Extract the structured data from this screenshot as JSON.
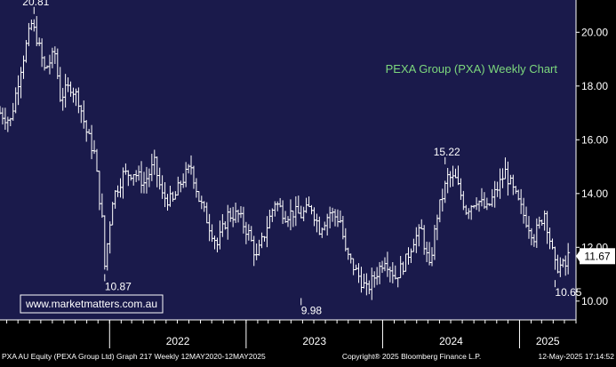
{
  "chart_data": {
    "type": "ohlc",
    "title": "PEXA Group (PXA) Weekly Chart",
    "ylim": [
      9.3,
      21.2
    ],
    "xlim": [
      "2021-03-14",
      "2025-06-01"
    ],
    "y_ticks": [
      "20.00",
      "18.00",
      "16.00",
      "14.00",
      "12.00",
      "10.00"
    ],
    "x_ticks": [
      {
        "label": "2022",
        "start": "2022-01-01",
        "end": "2023-01-01"
      },
      {
        "label": "2023",
        "start": "2023-01-01",
        "end": "2024-01-01"
      },
      {
        "label": "2024",
        "start": "2024-01-01",
        "end": "2025-01-01"
      },
      {
        "label": "2025",
        "start": "2025-01-01",
        "end": "2025-06-01"
      }
    ],
    "last_price": "11.67",
    "annotations": [
      {
        "label": "20.81",
        "x": "2021-06-13",
        "y": 20.81
      },
      {
        "label": "10.87",
        "x": "2021-12-19",
        "y": 10.87
      },
      {
        "label": "9.98",
        "x": "2023-05-28",
        "y": 9.98
      },
      {
        "label": "15.22",
        "x": "2024-06-16",
        "y": 15.22
      },
      {
        "label": "10.65",
        "x": "2025-04-06",
        "y": 10.65
      }
    ],
    "anchors": [
      [
        "2021-03-14",
        17.0
      ],
      [
        "2021-04-11",
        16.7
      ],
      [
        "2021-05-09",
        18.7
      ],
      [
        "2021-06-06",
        20.3
      ],
      [
        "2021-06-20",
        19.8
      ],
      [
        "2021-07-11",
        18.6
      ],
      [
        "2021-08-08",
        19.2
      ],
      [
        "2021-08-22",
        17.6
      ],
      [
        "2021-09-19",
        18.0
      ],
      [
        "2021-10-10",
        17.5
      ],
      [
        "2021-10-31",
        16.3
      ],
      [
        "2021-11-21",
        15.5
      ],
      [
        "2021-12-12",
        13.0
      ],
      [
        "2021-12-19",
        11.3
      ],
      [
        "2022-01-09",
        13.8
      ],
      [
        "2022-02-06",
        14.7
      ],
      [
        "2022-03-06",
        14.8
      ],
      [
        "2022-04-03",
        14.4
      ],
      [
        "2022-05-01",
        15.1
      ],
      [
        "2022-05-22",
        13.9
      ],
      [
        "2022-06-19",
        13.7
      ],
      [
        "2022-07-10",
        14.4
      ],
      [
        "2022-08-07",
        15.0
      ],
      [
        "2022-08-28",
        13.8
      ],
      [
        "2022-09-25",
        12.8
      ],
      [
        "2022-10-16",
        12.1
      ],
      [
        "2022-11-13",
        13.2
      ],
      [
        "2022-12-11",
        13.2
      ],
      [
        "2023-01-08",
        12.5
      ],
      [
        "2023-01-29",
        11.6
      ],
      [
        "2023-02-26",
        12.8
      ],
      [
        "2023-03-19",
        13.7
      ],
      [
        "2023-04-16",
        13.2
      ],
      [
        "2023-05-07",
        13.3
      ],
      [
        "2023-05-28",
        13.2
      ],
      [
        "2023-06-25",
        13.5
      ],
      [
        "2023-07-16",
        12.7
      ],
      [
        "2023-08-13",
        13.3
      ],
      [
        "2023-09-10",
        13.0
      ],
      [
        "2023-09-24",
        11.8
      ],
      [
        "2023-10-22",
        11.1
      ],
      [
        "2023-11-19",
        10.4
      ],
      [
        "2023-12-10",
        10.9
      ],
      [
        "2024-01-07",
        11.6
      ],
      [
        "2024-02-04",
        10.9
      ],
      [
        "2024-03-03",
        11.5
      ],
      [
        "2024-03-24",
        12.3
      ],
      [
        "2024-04-14",
        12.6
      ],
      [
        "2024-05-05",
        11.2
      ],
      [
        "2024-05-26",
        13.2
      ],
      [
        "2024-06-23",
        14.6
      ],
      [
        "2024-07-14",
        14.5
      ],
      [
        "2024-08-11",
        13.4
      ],
      [
        "2024-09-08",
        13.8
      ],
      [
        "2024-10-06",
        13.4
      ],
      [
        "2024-10-27",
        14.0
      ],
      [
        "2024-11-24",
        14.8
      ],
      [
        "2024-12-15",
        14.1
      ],
      [
        "2025-01-12",
        13.2
      ],
      [
        "2025-02-09",
        12.4
      ],
      [
        "2025-03-09",
        13.3
      ],
      [
        "2025-04-06",
        11.3
      ],
      [
        "2025-05-04",
        11.3
      ],
      [
        "2025-05-11",
        11.67
      ]
    ],
    "watermark": "www.marketmatters.com.au",
    "footer": {
      "left": "PXA AU Equity (PEXA Group Ltd) Graph 217  Weekly 12MAY2020-12MAY2025",
      "center": "Copyright® 2025 Bloomberg Finance L.P.",
      "right": "12-May-2025 17:14:52"
    },
    "colors": {
      "panel": "#1a1a4b",
      "bars": "#ffffff",
      "title": "#7dd87d",
      "watermark_text": "#ffffff",
      "watermark_border": "#ffffff",
      "price_box": "#ffffff",
      "price_text": "#000000",
      "axis_text": "#ffffff"
    }
  }
}
